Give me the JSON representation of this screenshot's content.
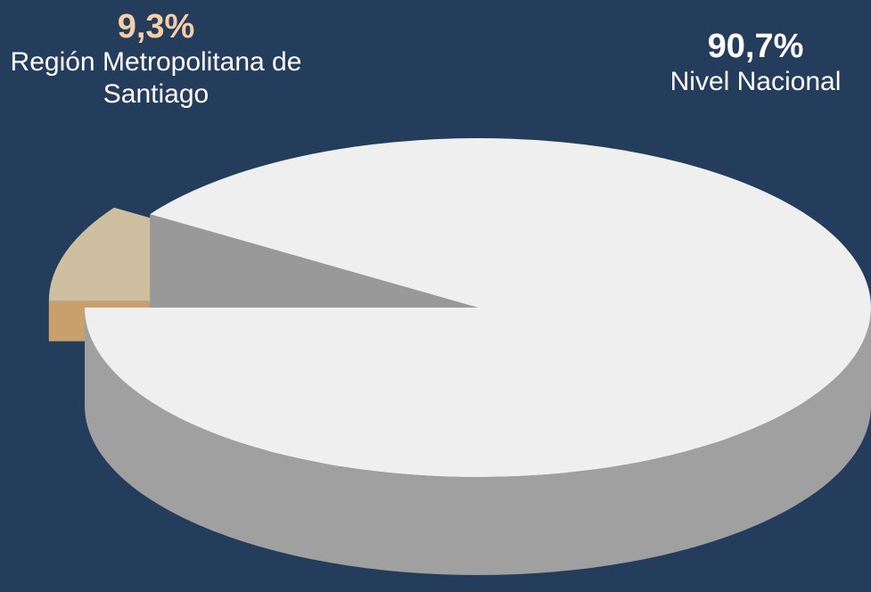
{
  "chart_data": {
    "type": "pie",
    "categories": [
      "Región Metropolitana de Santiago",
      "Nivel Nacional"
    ],
    "values": [
      9.3,
      90.7
    ],
    "value_labels": [
      "9,3%",
      "90,7%"
    ],
    "colors": [
      "#cdbf9f",
      "#efefef"
    ],
    "side_colors": [
      "#c9a06b",
      "#a0a0a0"
    ]
  }
}
